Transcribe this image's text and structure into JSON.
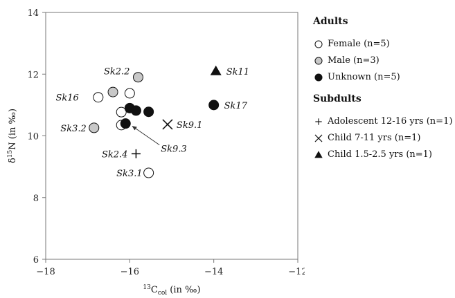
{
  "chart_data": {
    "type": "scatter",
    "xlabel_base": "C",
    "xlabel_sup": "13",
    "xlabel_sub": "col",
    "xlabel_unit": " (in ‰)",
    "ylabel_sym": "δ",
    "ylabel_sup": "15",
    "ylabel_base": "N (in ‰)",
    "xlim": [
      -18,
      -12
    ],
    "ylim": [
      6,
      14
    ],
    "xticks": [
      -18,
      -16,
      -14,
      -12
    ],
    "yticks": [
      6,
      8,
      10,
      12,
      14
    ],
    "grid": false,
    "legend_position": "right",
    "groups": [
      {
        "heading": "Adults",
        "series": [
          {
            "name": "Female (n=5)",
            "marker": "circle-open"
          },
          {
            "name": "Male (n=3)",
            "marker": "circle-gray"
          },
          {
            "name": "Unknown (n=5)",
            "marker": "circle-filled"
          }
        ]
      },
      {
        "heading": "Subdults",
        "series": [
          {
            "name": "Adolescent 12-16 yrs (n=1)",
            "marker": "plus"
          },
          {
            "name": "Child 7-11 yrs (n=1)",
            "marker": "cross"
          },
          {
            "name": "Child 1.5-2.5 yrs (n=1)",
            "marker": "triangle"
          }
        ]
      }
    ],
    "points": [
      {
        "marker": "circle-open",
        "x": -16.75,
        "y": 11.25
      },
      {
        "marker": "circle-open",
        "x": -16.0,
        "y": 11.38
      },
      {
        "marker": "circle-open",
        "x": -16.2,
        "y": 10.77
      },
      {
        "marker": "circle-open",
        "x": -16.2,
        "y": 10.35
      },
      {
        "marker": "circle-open",
        "x": -15.55,
        "y": 8.8
      },
      {
        "marker": "circle-gray",
        "x": -15.8,
        "y": 11.9
      },
      {
        "marker": "circle-gray",
        "x": -16.4,
        "y": 11.42
      },
      {
        "marker": "circle-gray",
        "x": -16.85,
        "y": 10.26
      },
      {
        "marker": "circle-filled",
        "x": -16.0,
        "y": 10.9
      },
      {
        "marker": "circle-filled",
        "x": -15.85,
        "y": 10.82
      },
      {
        "marker": "circle-filled",
        "x": -15.55,
        "y": 10.78
      },
      {
        "marker": "circle-filled",
        "x": -16.1,
        "y": 10.4
      },
      {
        "marker": "circle-filled",
        "x": -14.0,
        "y": 11.0
      },
      {
        "marker": "plus",
        "x": -15.85,
        "y": 9.42
      },
      {
        "marker": "cross",
        "x": -15.1,
        "y": 10.37
      },
      {
        "marker": "triangle",
        "x": -13.95,
        "y": 12.1
      }
    ],
    "annotations": [
      {
        "text": "Sk2.2",
        "x": -15.8,
        "y": 11.9
      },
      {
        "text": "Sk16",
        "x": -16.75,
        "y": 11.25
      },
      {
        "text": "Sk11",
        "x": -13.95,
        "y": 12.1
      },
      {
        "text": "Sk17",
        "x": -14.0,
        "y": 11.0
      },
      {
        "text": "Sk3.2",
        "x": -16.85,
        "y": 10.26
      },
      {
        "text": "Sk9.1",
        "x": -15.1,
        "y": 10.37
      },
      {
        "text": "Sk2.4",
        "x": -15.85,
        "y": 9.42
      },
      {
        "text": "Sk9.3",
        "x": -16.1,
        "y": 10.4,
        "arrow": true
      },
      {
        "text": "Sk3.1",
        "x": -15.55,
        "y": 8.8
      }
    ]
  }
}
